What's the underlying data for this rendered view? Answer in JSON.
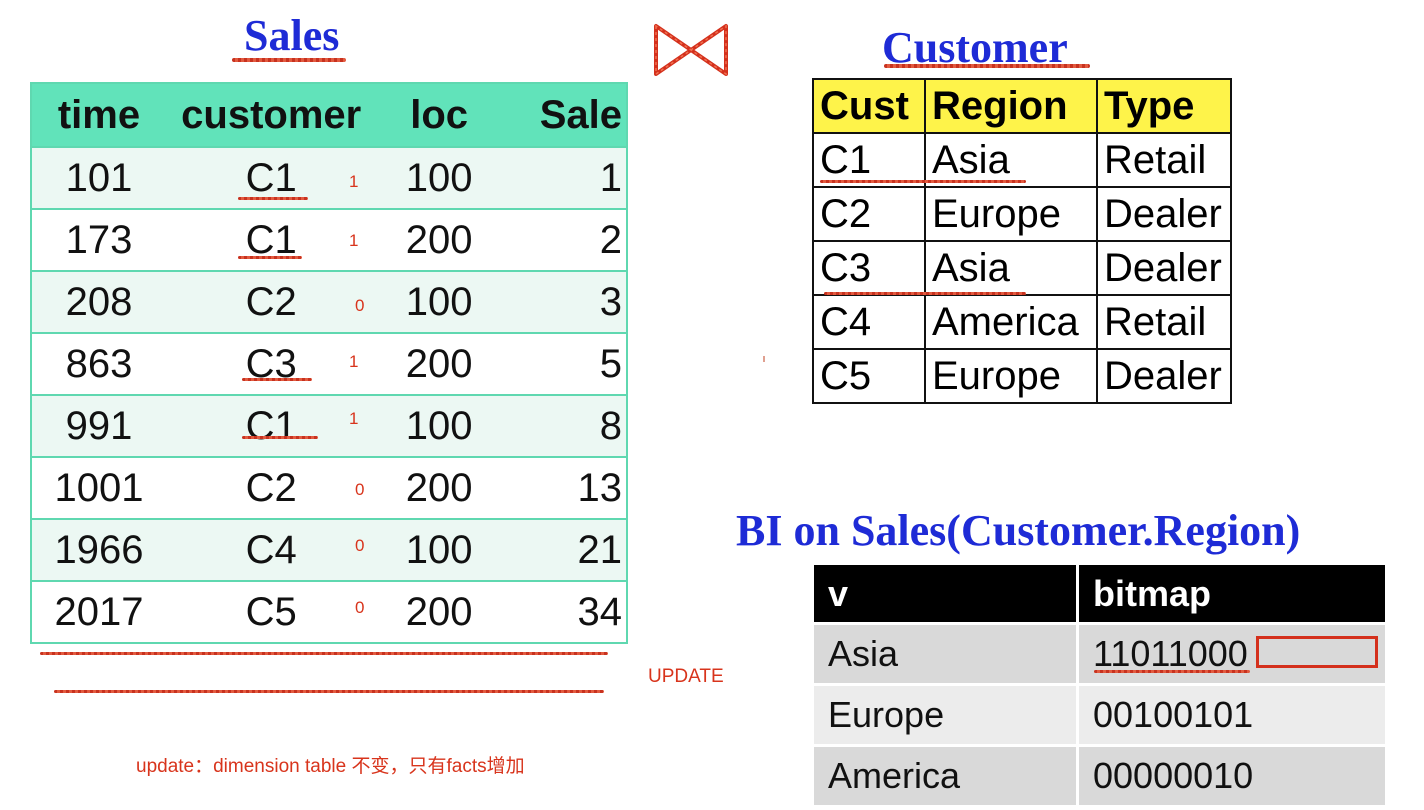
{
  "sales": {
    "title": "Sales",
    "headers": [
      "time",
      "customer",
      "loc",
      "Sale"
    ],
    "rows": [
      {
        "time": "101",
        "customer": "C1",
        "flag": "1",
        "loc": "100",
        "sale": "1"
      },
      {
        "time": "173",
        "customer": "C1",
        "flag": "1",
        "loc": "200",
        "sale": "2"
      },
      {
        "time": "208",
        "customer": "C2",
        "flag": "0",
        "loc": "100",
        "sale": "3"
      },
      {
        "time": "863",
        "customer": "C3",
        "flag": "1",
        "loc": "200",
        "sale": "5"
      },
      {
        "time": "991",
        "customer": "C1",
        "flag": "1",
        "loc": "100",
        "sale": "8"
      },
      {
        "time": "1001",
        "customer": "C2",
        "flag": "0",
        "loc": "200",
        "sale": "13"
      },
      {
        "time": "1966",
        "customer": "C4",
        "flag": "0",
        "loc": "100",
        "sale": "21"
      },
      {
        "time": "2017",
        "customer": "C5",
        "flag": "0",
        "loc": "200",
        "sale": "34"
      }
    ]
  },
  "customer": {
    "title": "Customer",
    "headers": [
      "Cust",
      "Region",
      "Type"
    ],
    "rows": [
      [
        "C1",
        "Asia",
        "Retail"
      ],
      [
        "C2",
        "Europe",
        "Dealer"
      ],
      [
        "C3",
        "Asia",
        "Dealer"
      ],
      [
        "C4",
        "America",
        "Retail"
      ],
      [
        "C5",
        "Europe",
        "Dealer"
      ]
    ]
  },
  "bitmap_index": {
    "title": "BI on Sales(Customer.Region)",
    "headers": [
      "v",
      "bitmap"
    ],
    "rows": [
      [
        "Asia",
        "11011000"
      ],
      [
        "Europe",
        "00100101"
      ],
      [
        "America",
        "00000010"
      ]
    ]
  },
  "annotations": {
    "update_label": "UPDATE",
    "note": "update：dimension table 不变，只有facts增加"
  },
  "colors": {
    "title_blue": "#1e2bd6",
    "sales_header": "#61e3ba",
    "customer_header": "#fef34a",
    "annotation_red": "#d8341c"
  },
  "icons": {
    "join": "bowtie-join-icon"
  }
}
